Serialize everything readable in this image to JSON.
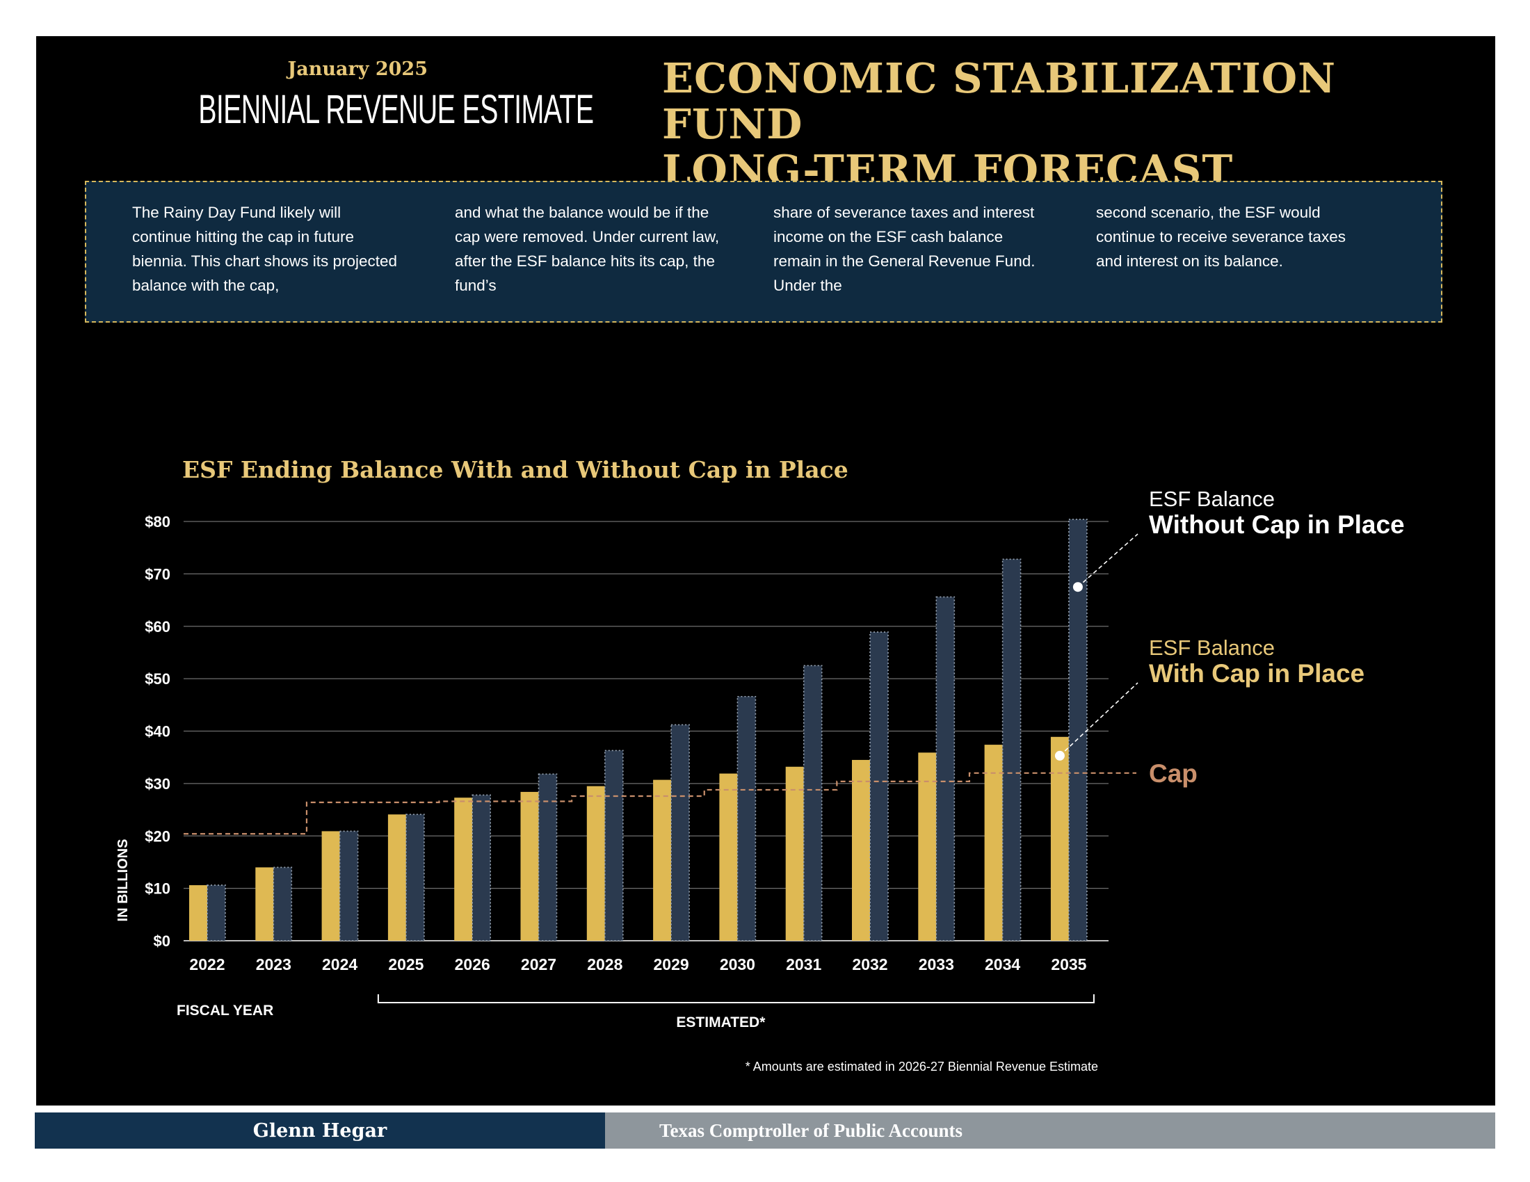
{
  "header": {
    "date": "January 2025",
    "report_name": "BIENNIAL REVENUE ESTIMATE",
    "title_line1": "ECONOMIC STABILIZATION FUND",
    "title_line2": "LONG-TERM FORECAST"
  },
  "intro": {
    "col1": "The Rainy Day Fund likely will continue hitting the cap in future biennia. This chart shows its projected balance with the cap,",
    "col2": "and what the balance would be if the cap were removed. Under current law, after the ESF balance hits its cap, the fund’s",
    "col3": "share of severance taxes and interest income on the ESF cash balance remain in the General Revenue Fund. Under the",
    "col4": "second scenario, the ESF would continue to receive severance taxes and interest on its balance."
  },
  "chart_data": {
    "type": "bar",
    "title": "ESF Ending Balance With and Without Cap in Place",
    "xlabel": "FISCAL YEAR",
    "ylabel": "IN BILLIONS",
    "ylim": [
      0,
      80
    ],
    "yticks": [
      "$0",
      "$10",
      "$20",
      "$30",
      "$40",
      "$50",
      "$60",
      "$70",
      "$80"
    ],
    "categories": [
      "2022",
      "2023",
      "2024",
      "2025",
      "2026",
      "2027",
      "2028",
      "2029",
      "2030",
      "2031",
      "2032",
      "2033",
      "2034",
      "2035"
    ],
    "series": [
      {
        "legend_line1": "ESF Balance",
        "legend_line2": "With Cap in Place",
        "color": "#dfb953",
        "values": [
          10.6,
          14.0,
          20.9,
          24.1,
          27.3,
          28.4,
          29.5,
          30.7,
          31.9,
          33.2,
          34.5,
          35.9,
          37.4,
          38.9
        ]
      },
      {
        "legend_line1": "ESF Balance",
        "legend_line2": "Without Cap in Place",
        "color": "#2b3a4f",
        "values": [
          10.6,
          14.0,
          20.9,
          24.1,
          27.8,
          31.8,
          36.3,
          41.2,
          46.6,
          52.5,
          58.9,
          65.6,
          72.8,
          80.4
        ]
      }
    ],
    "cap": {
      "label": "Cap",
      "color": "#c98f6b",
      "values": [
        20.4,
        20.4,
        26.4,
        26.4,
        26.6,
        26.6,
        27.6,
        27.6,
        28.8,
        28.8,
        30.4,
        30.4,
        32.0,
        32.0
      ]
    },
    "estimated_label": "ESTIMATED*",
    "estimated_from": "2025",
    "estimated_to": "2035",
    "footnote": "* Amounts are estimated in 2026-27 Biennial Revenue Estimate"
  },
  "footer": {
    "left": "Glenn Hegar",
    "right": "Texas Comptroller of Public Accounts"
  }
}
